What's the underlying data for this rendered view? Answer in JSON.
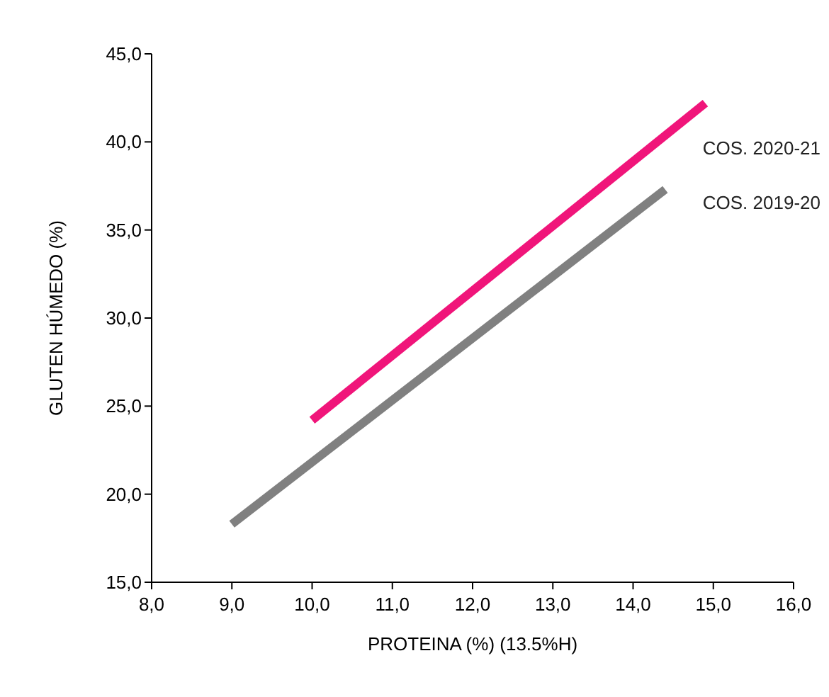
{
  "chart_data": {
    "type": "line",
    "xlabel": "PROTEINA (%) (13.5%H)",
    "ylabel": "GLUTEN HÚMEDO (%)",
    "xlim": [
      8,
      16
    ],
    "xticks": [
      {
        "value": 8,
        "label": "8,0"
      },
      {
        "value": 9,
        "label": "9,0"
      },
      {
        "value": 10,
        "label": "10,0"
      },
      {
        "value": 11,
        "label": "11,0"
      },
      {
        "value": 12,
        "label": "12,0"
      },
      {
        "value": 13,
        "label": "13,0"
      },
      {
        "value": 14,
        "label": "14,0"
      },
      {
        "value": 15,
        "label": "15,0"
      },
      {
        "value": 16,
        "label": "16,0"
      }
    ],
    "ylim": [
      15,
      45
    ],
    "yticks": [
      {
        "value": 15,
        "label": "15,0"
      },
      {
        "value": 20,
        "label": "20,0"
      },
      {
        "value": 25,
        "label": "25,0"
      },
      {
        "value": 30,
        "label": "30,0"
      },
      {
        "value": 35,
        "label": "35,0"
      },
      {
        "value": 40,
        "label": "40,0"
      },
      {
        "value": 45,
        "label": "45,0"
      }
    ],
    "grid": false,
    "legend": false,
    "marker": "none",
    "line_style": "solid",
    "series": [
      {
        "name": "COS. 2020-21",
        "color": "#f0157a",
        "x": [
          10,
          14.9
        ],
        "values": [
          24.2,
          42.2
        ]
      },
      {
        "name": "COS. 2019-20",
        "color": "#808080",
        "x": [
          9,
          14.4
        ],
        "values": [
          18.3,
          37.3
        ]
      }
    ]
  }
}
